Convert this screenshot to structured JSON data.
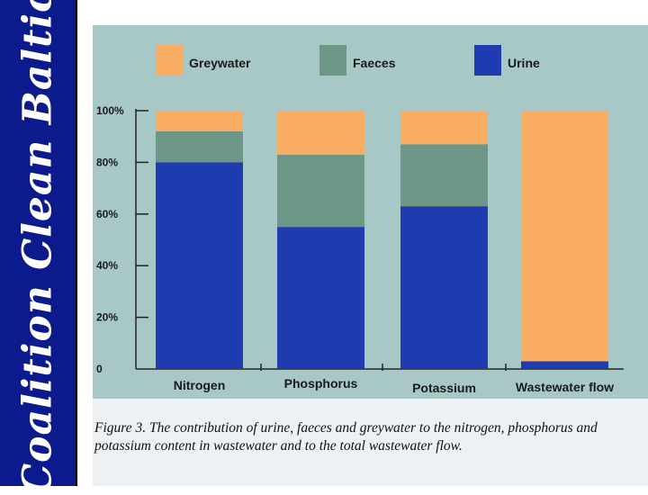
{
  "sidebar": {
    "logo_text": "Coalition Clean Baltic"
  },
  "caption": "Figure 3. The contribution of urine, faeces and greywater to the nitrogen, phosphorus and potassium content in wastewater and to the total wastewater flow.",
  "chart_data": {
    "type": "bar",
    "stacked": true,
    "categories": [
      "Nitrogen",
      "Phosphorus",
      "Potassium",
      "Wastewater flow"
    ],
    "series": [
      {
        "name": "Urine",
        "color": "#1e3bb0",
        "values": [
          80,
          55,
          63,
          3
        ]
      },
      {
        "name": "Faeces",
        "color": "#6c9787",
        "values": [
          12,
          28,
          24,
          0
        ]
      },
      {
        "name": "Greywater",
        "color": "#f9ad62",
        "values": [
          8,
          17,
          13,
          97
        ]
      }
    ],
    "legend_order": [
      "Greywater",
      "Faeces",
      "Urine"
    ],
    "yticks": [
      "0",
      "20%",
      "40%",
      "60%",
      "80%",
      "100%"
    ],
    "ylim": [
      0,
      100
    ],
    "legend_position": "top",
    "grid": false,
    "plot_background": "#a8c8c8"
  }
}
